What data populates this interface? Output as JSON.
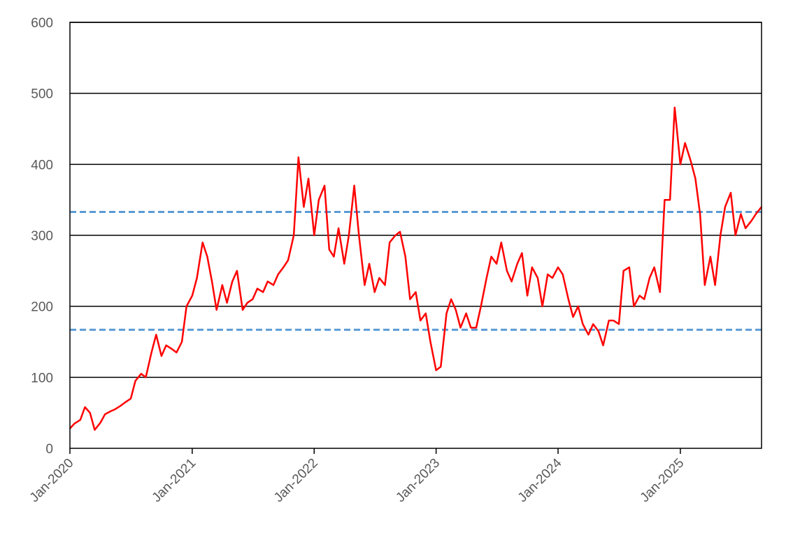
{
  "chart_data": {
    "type": "line",
    "title": "",
    "xlabel": "",
    "ylabel": "",
    "xlim": [
      "2020-01-01",
      "2025-09-01"
    ],
    "ylim": [
      0,
      600
    ],
    "y_ticks": [
      0,
      100,
      200,
      300,
      400,
      500,
      600
    ],
    "y_tick_labels": [
      "0",
      "100",
      "200",
      "300",
      "400",
      "500",
      "600"
    ],
    "x_ticks": [
      "2020-01-01",
      "2021-01-01",
      "2022-01-01",
      "2023-01-01",
      "2024-01-01",
      "2025-01-01"
    ],
    "x_tick_labels": [
      "Jan-2020",
      "Jan-2021",
      "Jan-2022",
      "Jan-2023",
      "Jan-2024",
      "Jan-2025"
    ],
    "grid": true,
    "legend": "none",
    "series": [
      {
        "color": "#ff0000",
        "x": [
          "2020-01-01",
          "2020-01-15",
          "2020-02-01",
          "2020-02-15",
          "2020-03-01",
          "2020-03-15",
          "2020-04-01",
          "2020-04-15",
          "2020-05-01",
          "2020-05-15",
          "2020-06-01",
          "2020-06-15",
          "2020-07-01",
          "2020-07-15",
          "2020-08-01",
          "2020-08-15",
          "2020-09-01",
          "2020-09-15",
          "2020-10-01",
          "2020-10-15",
          "2020-11-01",
          "2020-11-15",
          "2020-12-01",
          "2020-12-15",
          "2021-01-01",
          "2021-01-15",
          "2021-02-01",
          "2021-02-15",
          "2021-03-01",
          "2021-03-15",
          "2021-04-01",
          "2021-04-15",
          "2021-05-01",
          "2021-05-15",
          "2021-06-01",
          "2021-06-15",
          "2021-07-01",
          "2021-07-15",
          "2021-08-01",
          "2021-08-15",
          "2021-09-01",
          "2021-09-15",
          "2021-10-01",
          "2021-10-15",
          "2021-11-01",
          "2021-11-15",
          "2021-12-01",
          "2021-12-15",
          "2022-01-01",
          "2022-01-15",
          "2022-02-01",
          "2022-02-15",
          "2022-03-01",
          "2022-03-15",
          "2022-04-01",
          "2022-04-15",
          "2022-05-01",
          "2022-05-15",
          "2022-06-01",
          "2022-06-15",
          "2022-07-01",
          "2022-07-15",
          "2022-08-01",
          "2022-08-15",
          "2022-09-01",
          "2022-09-15",
          "2022-10-01",
          "2022-10-15",
          "2022-11-01",
          "2022-11-15",
          "2022-12-01",
          "2022-12-15",
          "2023-01-01",
          "2023-01-15",
          "2023-02-01",
          "2023-02-15",
          "2023-03-01",
          "2023-03-15",
          "2023-04-01",
          "2023-04-15",
          "2023-05-01",
          "2023-05-15",
          "2023-06-01",
          "2023-06-15",
          "2023-07-01",
          "2023-07-15",
          "2023-08-01",
          "2023-08-15",
          "2023-09-01",
          "2023-09-15",
          "2023-10-01",
          "2023-10-15",
          "2023-11-01",
          "2023-11-15",
          "2023-12-01",
          "2023-12-15",
          "2024-01-01",
          "2024-01-15",
          "2024-02-01",
          "2024-02-15",
          "2024-03-01",
          "2024-03-15",
          "2024-04-01",
          "2024-04-15",
          "2024-05-01",
          "2024-05-15",
          "2024-06-01",
          "2024-06-15",
          "2024-07-01",
          "2024-07-15",
          "2024-08-01",
          "2024-08-15",
          "2024-09-01",
          "2024-09-15",
          "2024-10-01",
          "2024-10-15",
          "2024-11-01",
          "2024-11-15",
          "2024-12-01",
          "2024-12-15",
          "2025-01-01",
          "2025-01-15",
          "2025-02-01",
          "2025-02-15",
          "2025-03-01",
          "2025-03-15",
          "2025-04-01",
          "2025-04-15",
          "2025-05-01",
          "2025-05-15",
          "2025-06-01",
          "2025-06-15",
          "2025-07-01",
          "2025-07-15",
          "2025-08-01",
          "2025-08-15",
          "2025-09-01"
        ],
        "values": [
          28,
          35,
          40,
          58,
          50,
          26,
          36,
          48,
          52,
          55,
          60,
          65,
          70,
          95,
          105,
          100,
          135,
          160,
          130,
          145,
          140,
          135,
          150,
          200,
          215,
          240,
          290,
          270,
          235,
          195,
          230,
          205,
          235,
          250,
          195,
          205,
          210,
          225,
          220,
          235,
          230,
          245,
          255,
          265,
          300,
          410,
          340,
          380,
          300,
          350,
          370,
          280,
          270,
          310,
          260,
          300,
          370,
          300,
          230,
          260,
          220,
          240,
          230,
          290,
          300,
          305,
          270,
          210,
          220,
          180,
          190,
          150,
          110,
          115,
          190,
          210,
          195,
          170,
          190,
          170,
          170,
          200,
          240,
          270,
          260,
          290,
          250,
          235,
          260,
          275,
          215,
          255,
          240,
          200,
          245,
          240,
          255,
          245,
          210,
          185,
          200,
          175,
          160,
          175,
          165,
          145,
          180,
          180,
          175,
          250,
          255,
          200,
          215,
          210,
          240,
          255,
          220,
          350,
          350,
          480,
          400,
          430,
          405,
          380,
          330,
          230,
          270,
          230,
          300,
          340,
          360,
          300,
          330,
          310,
          320,
          330,
          340
        ]
      }
    ],
    "reference_lines": [
      {
        "value": 333,
        "color": "#5b9bd5",
        "style": "dashed"
      },
      {
        "value": 167,
        "color": "#5b9bd5",
        "style": "dashed"
      }
    ]
  }
}
